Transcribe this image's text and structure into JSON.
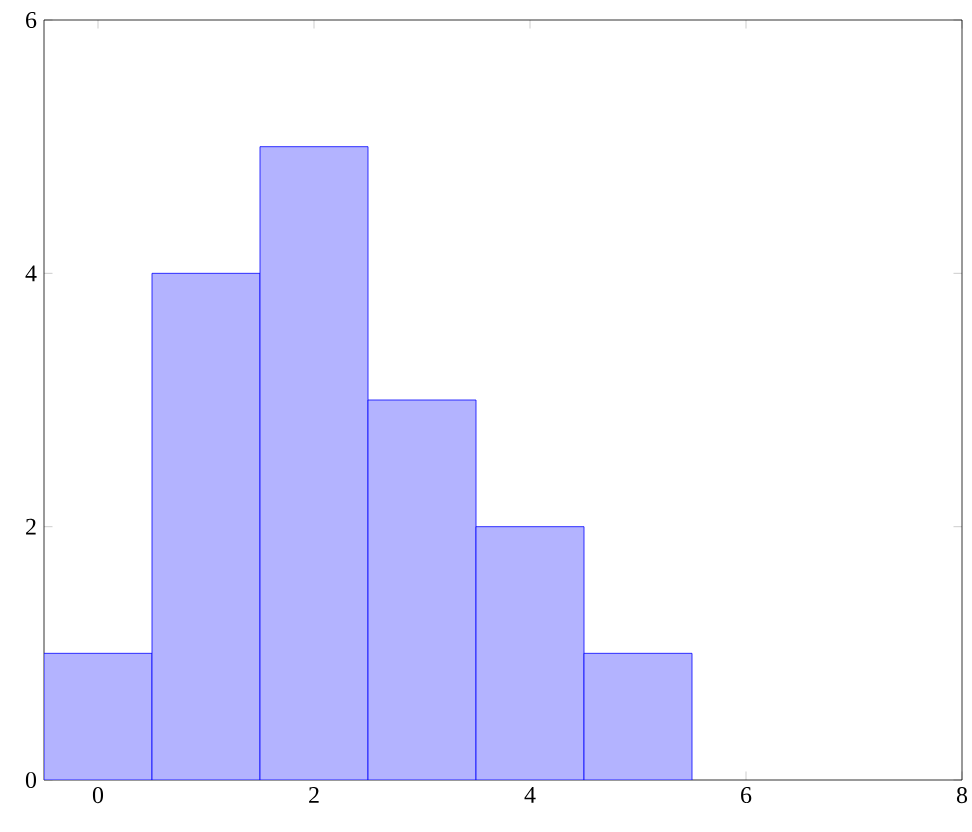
{
  "chart_data": {
    "type": "histogram",
    "bins": [
      -0.5,
      0.5,
      1.5,
      2.5,
      3.5,
      4.5,
      5.5
    ],
    "values": [
      1,
      4,
      5,
      3,
      2,
      1
    ],
    "color": "#b3b3ff",
    "xlim": [
      -0.5,
      8
    ],
    "ylim": [
      0,
      6
    ],
    "xticks": [
      0,
      2,
      4,
      6,
      8
    ],
    "yticks": [
      0,
      2,
      4,
      6
    ],
    "grid": false
  }
}
